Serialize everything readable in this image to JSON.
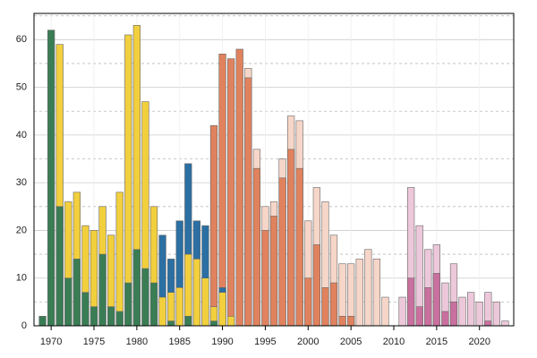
{
  "chart_data": {
    "type": "bar",
    "x": [
      1969,
      1970,
      1971,
      1972,
      1973,
      1974,
      1975,
      1976,
      1977,
      1978,
      1979,
      1980,
      1981,
      1982,
      1983,
      1984,
      1985,
      1986,
      1987,
      1988,
      1989,
      1990,
      1991,
      1992,
      1993,
      1994,
      1995,
      1996,
      1997,
      1998,
      1999,
      2000,
      2001,
      2002,
      2003,
      2004,
      2005,
      2006,
      2007,
      2008,
      2009,
      2010,
      2011,
      2012,
      2013,
      2014,
      2015,
      2016,
      2017,
      2018,
      2019,
      2020,
      2021,
      2022,
      2023
    ],
    "series": [
      {
        "color": "#f6d6c8",
        "values": [
          null,
          null,
          null,
          null,
          null,
          null,
          null,
          null,
          null,
          null,
          null,
          null,
          null,
          null,
          null,
          null,
          null,
          null,
          null,
          null,
          null,
          null,
          null,
          null,
          54,
          37,
          25,
          26,
          35,
          44,
          43,
          22,
          29,
          26,
          19,
          13,
          13,
          14,
          16,
          14,
          6,
          null,
          null,
          null,
          null,
          null,
          null,
          null,
          null,
          null,
          null,
          null,
          null,
          null,
          null
        ]
      },
      {
        "color": "#e0825e",
        "values": [
          null,
          null,
          null,
          null,
          null,
          null,
          null,
          null,
          null,
          null,
          null,
          null,
          null,
          null,
          null,
          null,
          null,
          null,
          null,
          null,
          42,
          57,
          56,
          58,
          52,
          33,
          20,
          23,
          31,
          37,
          33,
          10,
          17,
          8,
          9,
          2,
          2,
          null,
          null,
          null,
          null,
          null,
          null,
          null,
          null,
          null,
          null,
          null,
          null,
          null,
          null,
          null,
          null,
          null,
          null
        ]
      },
      {
        "color": "#ecc8da",
        "values": [
          null,
          null,
          null,
          null,
          null,
          null,
          null,
          null,
          null,
          null,
          null,
          null,
          null,
          null,
          null,
          null,
          null,
          null,
          null,
          null,
          null,
          null,
          null,
          null,
          null,
          null,
          null,
          null,
          null,
          null,
          null,
          null,
          null,
          null,
          null,
          null,
          null,
          null,
          null,
          null,
          null,
          null,
          6,
          29,
          21,
          16,
          17,
          9,
          13,
          6,
          7,
          5,
          7,
          5,
          1
        ]
      },
      {
        "color": "#c9709f",
        "values": [
          null,
          null,
          null,
          null,
          null,
          null,
          null,
          null,
          null,
          null,
          null,
          null,
          null,
          null,
          null,
          null,
          null,
          null,
          null,
          null,
          null,
          null,
          null,
          null,
          null,
          null,
          null,
          null,
          null,
          null,
          null,
          null,
          null,
          null,
          null,
          null,
          null,
          null,
          null,
          null,
          null,
          null,
          null,
          10,
          4,
          8,
          11,
          3,
          5,
          null,
          null,
          null,
          1,
          null,
          null
        ]
      },
      {
        "color": "#2b6fa3",
        "values": [
          null,
          null,
          null,
          null,
          null,
          null,
          null,
          null,
          null,
          null,
          null,
          null,
          null,
          null,
          19,
          14,
          22,
          34,
          22,
          21,
          null,
          8,
          null,
          null,
          null,
          null,
          null,
          null,
          null,
          null,
          null,
          null,
          null,
          null,
          null,
          null,
          null,
          null,
          null,
          null,
          null,
          null,
          null,
          null,
          null,
          null,
          null,
          null,
          null,
          null,
          null,
          null,
          null,
          null,
          null
        ]
      },
      {
        "color": "#f2cf3d",
        "values": [
          null,
          null,
          59,
          26,
          28,
          21,
          20,
          25,
          19,
          28,
          61,
          63,
          47,
          25,
          6,
          7,
          8,
          15,
          14,
          10,
          4,
          7,
          2,
          null,
          null,
          null,
          null,
          null,
          null,
          null,
          null,
          null,
          null,
          null,
          null,
          null,
          null,
          null,
          null,
          null,
          null,
          null,
          null,
          null,
          null,
          null,
          null,
          null,
          null,
          null,
          null,
          null,
          null,
          null,
          null
        ]
      },
      {
        "color": "#3a7d55",
        "values": [
          2,
          62,
          25,
          10,
          14,
          7,
          4,
          15,
          4,
          3,
          9,
          16,
          12,
          9,
          null,
          1,
          null,
          2,
          null,
          null,
          1,
          null,
          null,
          null,
          null,
          null,
          null,
          null,
          null,
          null,
          null,
          null,
          null,
          null,
          null,
          null,
          null,
          null,
          null,
          null,
          null,
          null,
          null,
          null,
          null,
          null,
          null,
          null,
          null,
          null,
          null,
          null,
          null,
          null,
          null
        ]
      }
    ],
    "xlim": [
      1968,
      2024
    ],
    "xticks": [
      1970,
      1975,
      1980,
      1985,
      1990,
      1995,
      2000,
      2005,
      2010,
      2015,
      2020
    ],
    "ylim": [
      0,
      65.5
    ],
    "yticks": [
      0,
      10,
      20,
      30,
      40,
      50,
      60
    ],
    "minor_yticks": [
      5,
      15,
      25,
      35,
      45,
      55,
      65
    ],
    "grid": true
  }
}
